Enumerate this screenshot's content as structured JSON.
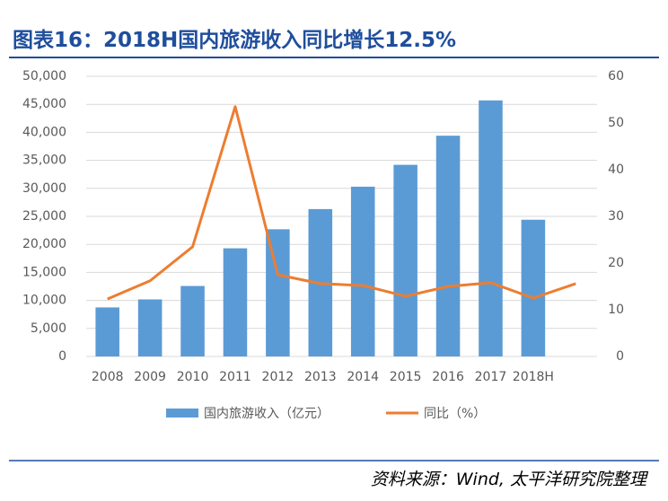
{
  "chart_data": {
    "type": "bar-line",
    "title": "图表16：2018H国内旅游收入同比增长12.5%",
    "source": "资料来源：Wind, 太平洋研究院整理",
    "categories": [
      "2008",
      "2009",
      "2010",
      "2011",
      "2012",
      "2013",
      "2014",
      "2015",
      "2016",
      "2017",
      "2018H",
      null
    ],
    "series": [
      {
        "name": "国内旅游收入（亿元）",
        "type": "bar",
        "color": "#5b9bd5",
        "values": [
          8750,
          10180,
          12580,
          19300,
          22700,
          26300,
          30300,
          34200,
          39400,
          45700,
          24400,
          null
        ]
      },
      {
        "name": "同比（%）",
        "type": "line",
        "axis": "y2",
        "color": "#ed7d31",
        "values": [
          12.3,
          16.2,
          23.5,
          53.5,
          17.5,
          15.6,
          15.2,
          12.9,
          15.0,
          15.8,
          12.5,
          15.6
        ]
      }
    ],
    "ylim": [
      0,
      50000
    ],
    "yticks": [
      0,
      {
        "value": 5000,
        "label": "5,000"
      },
      {
        "value": 10000,
        "label": "10,000"
      },
      {
        "value": 15000,
        "label": "15,000"
      },
      {
        "value": 20000,
        "label": "20,000"
      },
      {
        "value": 25000,
        "label": "25,000"
      },
      {
        "value": 30000,
        "label": "30,000"
      },
      {
        "value": 35000,
        "label": "35,000"
      },
      {
        "value": 40000,
        "label": "40,000"
      },
      {
        "value": 45000,
        "label": "45,000"
      },
      {
        "value": 50000,
        "label": "50,000"
      }
    ],
    "y2lim": [
      0,
      60
    ],
    "y2ticks": [
      0,
      10,
      20,
      30,
      40,
      50,
      60
    ]
  }
}
